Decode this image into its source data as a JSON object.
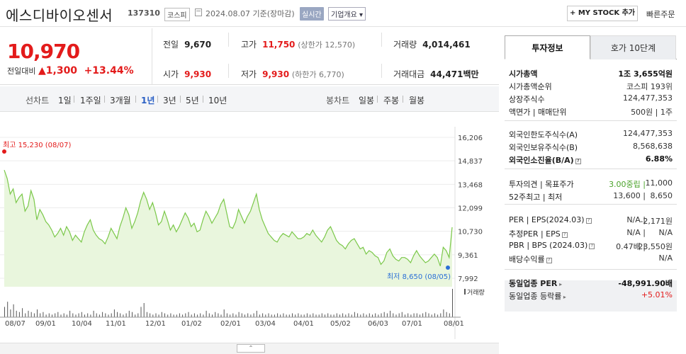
{
  "header": {
    "title": "에스디바이오센서",
    "code": "137310",
    "market": "코스피",
    "date": "2024.08.07 기준(장마감)",
    "realtime": "실시간",
    "company": "기업개요 ▾",
    "mystock": "+ MY STOCK 추가",
    "quick_order": "빠른주문"
  },
  "price": {
    "current": "10,970",
    "change_label": "전일대비",
    "change_arrow": "▲",
    "change_value": "1,300",
    "change_pct": "+13.44%",
    "prev_label": "전일",
    "prev": "9,670",
    "high_label": "고가",
    "high": "11,750",
    "upper_limit": "(상한가 12,570)",
    "volume_label": "거래량",
    "volume": "4,014,461",
    "open_label": "시가",
    "open": "9,930",
    "low_label": "저가",
    "low": "9,930",
    "lower_limit": "(하한가 6,770)",
    "amount_label": "거래대금",
    "amount": "44,471",
    "amount_unit": "백만"
  },
  "periods": {
    "line_label": "선차트",
    "items": [
      "1일",
      "1주일",
      "3개월",
      "1년",
      "3년",
      "5년",
      "10년"
    ],
    "active": "1년",
    "candle_label": "봉차트",
    "candle_items": [
      "일봉",
      "주봉",
      "월봉"
    ]
  },
  "chart_data": {
    "type": "area",
    "y_ticks": [
      "16,206",
      "14,837",
      "13,468",
      "12,099",
      "10,730",
      "9,361",
      "7,992"
    ],
    "ylim": [
      7992,
      16206
    ],
    "x_labels": [
      "08/07",
      "09/01",
      "10/04",
      "11/01",
      "12/01",
      "01/02",
      "02/01",
      "03/04",
      "04/01",
      "05/02",
      "06/03",
      "07/01",
      "08/01"
    ],
    "values": [
      14300,
      13800,
      12900,
      13200,
      12400,
      12700,
      12900,
      11900,
      12200,
      13100,
      12600,
      11400,
      12000,
      11700,
      11300,
      11100,
      10800,
      10400,
      10600,
      10900,
      10500,
      11000,
      10700,
      10200,
      10500,
      10300,
      10100,
      10700,
      11100,
      11400,
      10800,
      10500,
      10300,
      10200,
      10000,
      10400,
      10900,
      10600,
      10300,
      11000,
      11500,
      12100,
      11700,
      10900,
      11300,
      11800,
      12500,
      13000,
      12600,
      12000,
      12400,
      11800,
      11100,
      11300,
      11900,
      11400,
      10800,
      11100,
      10700,
      11000,
      11400,
      11800,
      11500,
      11000,
      11200,
      10700,
      10800,
      11400,
      11900,
      11600,
      11200,
      11500,
      11800,
      12300,
      12600,
      11800,
      11000,
      10900,
      11300,
      12000,
      11600,
      11200,
      11600,
      11900,
      12400,
      12900,
      12000,
      11400,
      11000,
      10600,
      10400,
      10200,
      10100,
      10400,
      10600,
      10500,
      10400,
      10700,
      10500,
      10300,
      10300,
      10400,
      10600,
      10500,
      10800,
      10500,
      10300,
      10100,
      10400,
      10800,
      11000,
      10600,
      10200,
      10000,
      9900,
      9700,
      10000,
      10200,
      10300,
      10000,
      9700,
      9800,
      9400,
      9600,
      9500,
      9300,
      9200,
      8800,
      9000,
      9500,
      9700,
      9300,
      9100,
      9000,
      9200,
      9200,
      9100,
      8900,
      9300,
      9600,
      9300,
      9100,
      8900,
      9000,
      9200,
      9400,
      9200,
      8700,
      9800,
      9600,
      9200,
      10970
    ],
    "high_label": "최고 15,230 (08/07)",
    "low_label": "최저 8,650 (08/05)",
    "volume_label": "거래량",
    "volumes": [
      8,
      12,
      6,
      10,
      5,
      4,
      7,
      3,
      5,
      4,
      3,
      6,
      3,
      4,
      2,
      3,
      2,
      3,
      4,
      2,
      3,
      2,
      5,
      3,
      2,
      3,
      4,
      2,
      3,
      2,
      5,
      3,
      2,
      4,
      3,
      2,
      3,
      6,
      4,
      3,
      2,
      3,
      5,
      4,
      2,
      3,
      8,
      11,
      4,
      3,
      2,
      3,
      2,
      4,
      3,
      2,
      3,
      2,
      2,
      3,
      2,
      3,
      4,
      2,
      3,
      2,
      3,
      2,
      5,
      3,
      2,
      4,
      3,
      2,
      6,
      3,
      2,
      3,
      2,
      4,
      3,
      2,
      3,
      2,
      3,
      5,
      2,
      3,
      2,
      3,
      2,
      2,
      3,
      2,
      3,
      2,
      2,
      3,
      2,
      3,
      2,
      2,
      3,
      2,
      3,
      2,
      2,
      3,
      2,
      3,
      2,
      2,
      3,
      2,
      3,
      2,
      3,
      2,
      4,
      3,
      2,
      3,
      2,
      3,
      2,
      3,
      2,
      3,
      4,
      3,
      5,
      3,
      2,
      3,
      4,
      2,
      3,
      2,
      3,
      3,
      2,
      3,
      4,
      3,
      2,
      3,
      2,
      3,
      6,
      4,
      3,
      22
    ]
  },
  "right_panel": {
    "tab_active": "투자정보",
    "tab_other": "호가 10단계",
    "rows": [
      {
        "k": "시가총액",
        "v": "1조 3,655억원",
        "kb": true,
        "vb": true
      },
      {
        "k": "시가총액순위",
        "v": "코스피 193위"
      },
      {
        "k": "상장주식수",
        "v": "124,477,353"
      },
      {
        "k": "액면가 | 매매단위",
        "v": "500원 | 1주"
      },
      {
        "k": "외국인한도주식수(A)",
        "v": "124,477,353"
      },
      {
        "k": "외국인보유주식수(B)",
        "v": "8,568,638"
      },
      {
        "k": "외국인소진율(B/A)",
        "v": "6.88%",
        "kb": true,
        "vb": true
      },
      {
        "k": "투자의견 | 목표주가",
        "v1": "3.00중립",
        "v": "11,000"
      },
      {
        "k": "52주최고 | 최저",
        "v1": "13,600",
        "v": "8,650"
      },
      {
        "k": "PER | EPS(2024.03)",
        "v1": "N/A",
        "v": "-2,171원"
      },
      {
        "k": "추정PER | EPS",
        "v1": "N/A",
        "v": "N/A"
      },
      {
        "k": "PBR | BPS (2024.03)",
        "v1": "0.47배",
        "v": "23,550원"
      },
      {
        "k": "배당수익률",
        "v": "N/A"
      },
      {
        "k": "동일업종 PER",
        "v": "-48,991.90배",
        "kb": true,
        "vb": true
      },
      {
        "k": "동일업종 등락률",
        "v": "+5.01%"
      }
    ]
  }
}
